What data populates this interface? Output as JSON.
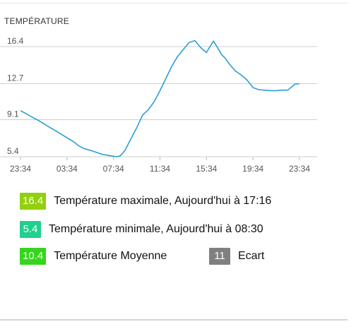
{
  "chart_data": {
    "type": "line",
    "title": "TEMPÉRATURE",
    "xlabel": "",
    "ylabel": "",
    "x_ticks": [
      "23:34",
      "03:34",
      "07:34",
      "11:34",
      "15:34",
      "19:34",
      "23:34"
    ],
    "y_ticks": [
      "5.4",
      "9.1",
      "12.7",
      "16.4"
    ],
    "ylim": [
      5.4,
      17.2
    ],
    "grid": true,
    "series_color": "#2a9fd6",
    "series": [
      {
        "x": [
          0.0,
          0.5,
          1.0,
          1.5,
          2.0,
          2.5,
          3.0,
          3.5,
          4.0,
          4.5,
          5.0,
          5.5,
          6.0,
          6.5,
          7.0,
          7.5,
          8.0,
          8.3,
          8.6,
          9.0,
          9.5,
          10.0,
          10.5,
          11.0,
          11.5,
          12.0,
          12.5,
          13.0,
          13.5,
          14.0,
          14.5,
          15.0,
          15.5,
          16.0,
          16.3,
          16.6,
          17.0,
          17.3,
          17.6,
          18.0,
          18.5,
          19.0,
          19.5,
          20.0,
          20.5,
          21.0,
          21.5,
          22.0,
          22.5,
          23.0,
          23.3,
          23.6,
          24.0
        ],
        "y": [
          10.0,
          9.7,
          9.35,
          9.05,
          8.7,
          8.35,
          8.0,
          7.65,
          7.3,
          6.95,
          6.5,
          6.2,
          6.05,
          5.85,
          5.65,
          5.55,
          5.45,
          5.4,
          5.5,
          6.05,
          7.2,
          8.3,
          9.55,
          10.1,
          10.9,
          12.0,
          13.2,
          14.4,
          15.4,
          16.1,
          16.8,
          17.0,
          16.3,
          15.8,
          16.4,
          16.95,
          16.2,
          15.6,
          15.25,
          14.6,
          13.95,
          13.55,
          13.05,
          12.3,
          12.1,
          12.05,
          12.0,
          12.0,
          12.05,
          12.05,
          12.35,
          12.65,
          12.7
        ]
      }
    ]
  },
  "stats": [
    {
      "value": "16.4",
      "label": "Température maximale, Aujourd'hui à 17:16",
      "color": "#92d00f"
    },
    {
      "value": "5.4",
      "label": "Température minimale, Aujourd'hui à 08:30",
      "color": "#1fd08e"
    },
    {
      "value": "10.4",
      "label": "Température Moyenne",
      "color": "#33d61a"
    },
    {
      "value": "11",
      "label": "Ecart",
      "color": "#808080"
    }
  ]
}
